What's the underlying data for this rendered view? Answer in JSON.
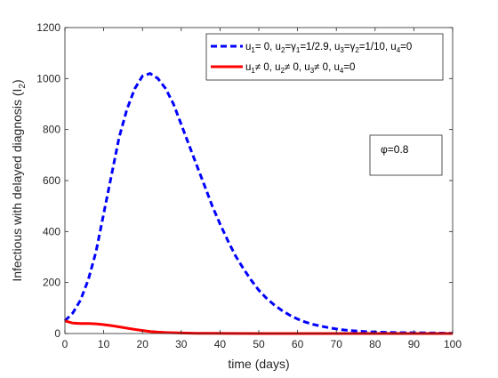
{
  "chart_data": {
    "type": "line",
    "xlabel": "time (days)",
    "ylabel": "Infectious with delayed diagnosis (I",
    "ylabel_sub": "2",
    "ylabel_end": ")",
    "xlim": [
      0,
      100
    ],
    "ylim": [
      0,
      1200
    ],
    "xticks": [
      0,
      10,
      20,
      30,
      40,
      50,
      60,
      70,
      80,
      90,
      100
    ],
    "yticks": [
      0,
      200,
      400,
      600,
      800,
      1000,
      1200
    ],
    "grid": false,
    "legend_position": "top-right",
    "annotation": "φ=0.8",
    "series": [
      {
        "color": "#0000ff",
        "style": "dashed",
        "legend": [
          {
            "t": "u"
          },
          {
            "t": "1",
            "sub": true
          },
          {
            "t": "= 0, u"
          },
          {
            "t": "2",
            "sub": true
          },
          {
            "t": "=γ"
          },
          {
            "t": "1",
            "sub": true
          },
          {
            "t": "=1/2.9, u"
          },
          {
            "t": "3",
            "sub": true
          },
          {
            "t": "=γ"
          },
          {
            "t": "2",
            "sub": true
          },
          {
            "t": "=1/10, u"
          },
          {
            "t": "4",
            "sub": true
          },
          {
            "t": "=0"
          }
        ],
        "x": [
          0,
          2,
          4,
          6,
          8,
          10,
          12,
          14,
          16,
          18,
          20,
          22,
          24,
          26,
          28,
          30,
          32,
          34,
          36,
          38,
          40,
          42,
          44,
          46,
          48,
          50,
          52,
          54,
          56,
          58,
          60,
          62,
          64,
          66,
          68,
          70,
          72,
          74,
          76,
          78,
          80,
          85,
          90,
          95,
          100
        ],
        "y": [
          50,
          80,
          130,
          210,
          320,
          470,
          620,
          770,
          880,
          960,
          1010,
          1020,
          1000,
          960,
          900,
          820,
          740,
          660,
          580,
          500,
          430,
          365,
          305,
          255,
          210,
          170,
          138,
          112,
          90,
          72,
          57,
          45,
          36,
          29,
          23,
          18,
          14,
          11,
          9,
          7,
          6,
          4,
          3,
          2,
          1
        ]
      },
      {
        "color": "#ff0000",
        "style": "solid",
        "legend": [
          {
            "t": "u"
          },
          {
            "t": "1",
            "sub": true
          },
          {
            "t": "≠ 0, u"
          },
          {
            "t": "2",
            "sub": true
          },
          {
            "t": "≠ 0, u"
          },
          {
            "t": "3",
            "sub": true
          },
          {
            "t": "≠ 0, u"
          },
          {
            "t": "4",
            "sub": true
          },
          {
            "t": "=0"
          }
        ],
        "x": [
          0,
          1,
          2,
          3,
          4,
          6,
          8,
          10,
          12,
          14,
          16,
          18,
          20,
          22,
          24,
          26,
          28,
          30,
          34,
          38,
          42,
          50,
          60,
          70,
          80,
          90,
          100
        ],
        "y": [
          50,
          45,
          41,
          40,
          39,
          39,
          38,
          35,
          31,
          26,
          21,
          16,
          12,
          8,
          5.5,
          4,
          3,
          2,
          1,
          0.6,
          0.3,
          0.1,
          0,
          0,
          0,
          0,
          0
        ]
      }
    ]
  }
}
